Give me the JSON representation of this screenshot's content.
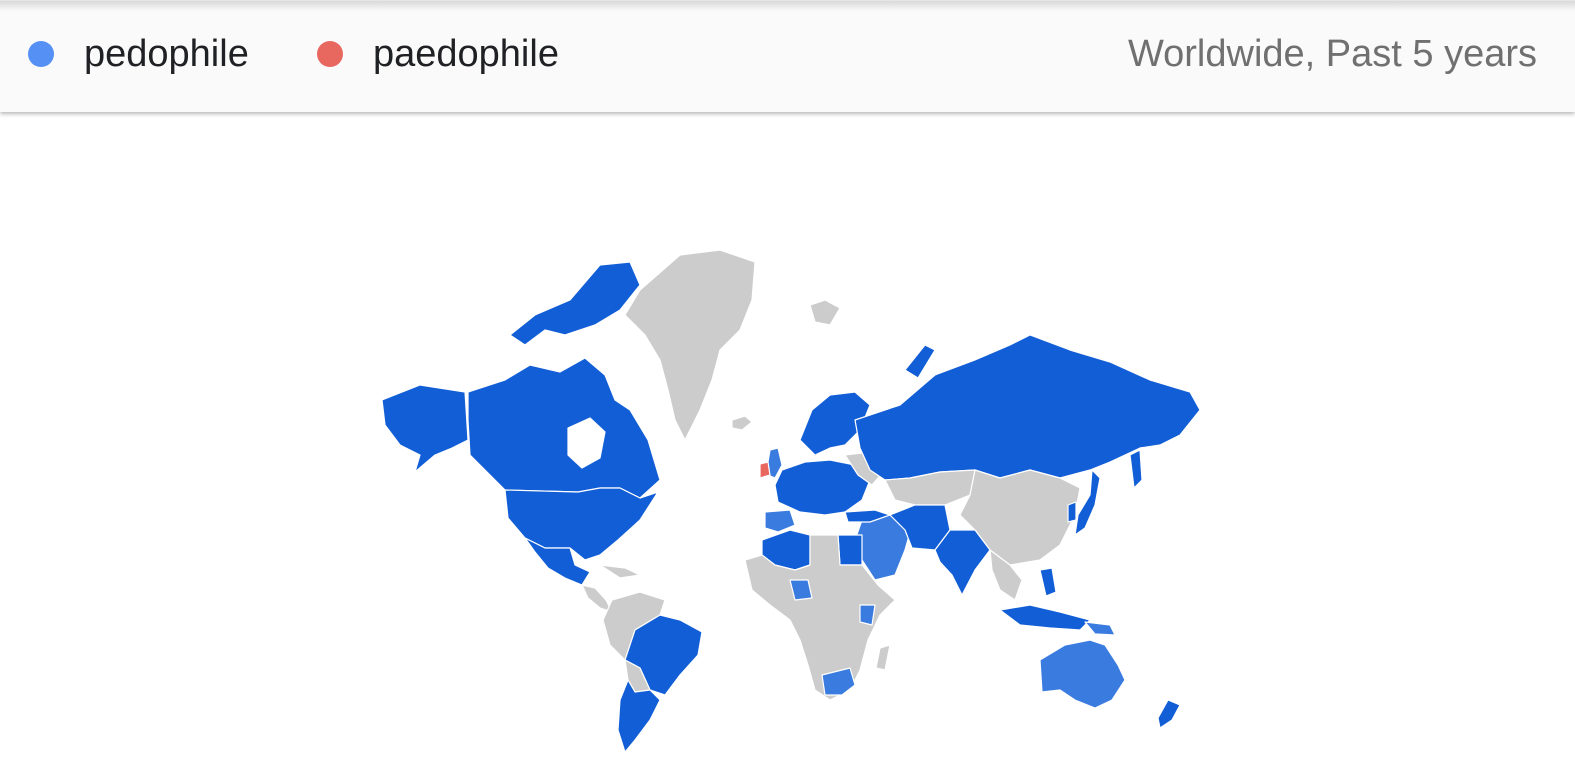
{
  "legend": {
    "items": [
      {
        "label": "pedophile",
        "color": "#5591f5"
      },
      {
        "label": "paedophile",
        "color": "#e8675f"
      }
    ],
    "scope": "Worldwide, Past 5 years"
  },
  "map": {
    "colors": {
      "pedophile_strong": "#125ed6",
      "pedophile_medium": "#3a7be0",
      "paedophile": "#e8675f",
      "no_data": "#cccccc"
    },
    "regions": [
      {
        "name": "Canada",
        "term": "pedophile"
      },
      {
        "name": "Alaska",
        "term": "pedophile"
      },
      {
        "name": "United States",
        "term": "pedophile"
      },
      {
        "name": "Mexico",
        "term": "pedophile"
      },
      {
        "name": "Brazil",
        "term": "pedophile"
      },
      {
        "name": "Argentina",
        "term": "pedophile"
      },
      {
        "name": "Russia",
        "term": "pedophile"
      },
      {
        "name": "Scandinavia",
        "term": "pedophile"
      },
      {
        "name": "Western Europe",
        "term": "pedophile"
      },
      {
        "name": "Ireland",
        "term": "paedophile"
      },
      {
        "name": "India",
        "term": "pedophile"
      },
      {
        "name": "Japan",
        "term": "pedophile"
      },
      {
        "name": "Australia",
        "term": "pedophile"
      },
      {
        "name": "South Africa",
        "term": "pedophile"
      },
      {
        "name": "New Zealand",
        "term": "pedophile"
      }
    ]
  }
}
